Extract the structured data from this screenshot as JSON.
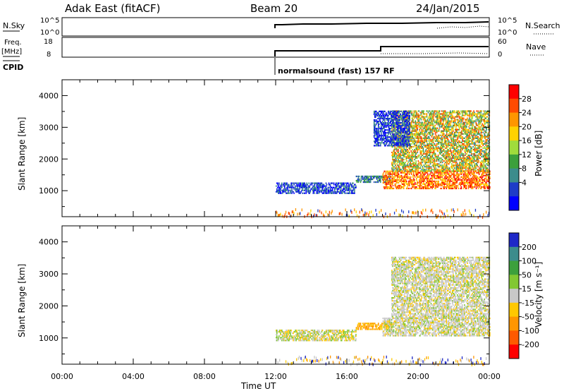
{
  "header": {
    "station": "Adak East (fitACF)",
    "beam": "Beam 20",
    "date": "24/Jan/2015"
  },
  "status_panels": {
    "nsky_label": "N.Sky",
    "nsearch_label": "N.Search",
    "freq_label_line1": "Freq.",
    "freq_label_line2": "[MHz]",
    "nave_label": "Nave",
    "cpid_label": "CPID",
    "cpid_text": "normalsound (fast) 157 RF",
    "nsky_ticks": [
      "10^5",
      "10^0"
    ],
    "nsearch_ticks": [
      "10^5",
      "10^0"
    ],
    "freq_ticks": [
      "18",
      "8"
    ],
    "nave_ticks": [
      "60",
      "0"
    ]
  },
  "colorbars": {
    "power": {
      "label": "Power [dB]",
      "ticks": [
        "28",
        "24",
        "20",
        "16",
        "12",
        "8",
        "4"
      ],
      "colors": [
        "#ff0000",
        "#ff4b00",
        "#ff9600",
        "#ffd200",
        "#a0dc3c",
        "#3ca03c",
        "#3c8c8c",
        "#1e3cc8",
        "#0000ff"
      ]
    },
    "velocity": {
      "label": "Velocity [m s⁻¹]",
      "ticks": [
        "200",
        "100",
        "50",
        "15",
        "-15",
        "-50",
        "-100",
        "-200"
      ],
      "colors": [
        "#1e28c8",
        "#3c8c8c",
        "#3ca03c",
        "#82c832",
        "#c8c8c8",
        "#ffc800",
        "#ff9600",
        "#ff5a00",
        "#ff0000"
      ]
    }
  },
  "chart_data": [
    {
      "type": "heatmap",
      "title": "Power",
      "ylabel": "Slant Range [km]",
      "xlabel": "Time UT",
      "xlim": [
        "00:00",
        "00:00"
      ],
      "ylim": [
        180,
        4500
      ],
      "x_ticks": [
        "00:00",
        "04:00",
        "08:00",
        "12:00",
        "16:00",
        "20:00",
        "00:00"
      ],
      "y_ticks": [
        1000,
        2000,
        3000,
        4000
      ],
      "regions": [
        {
          "t_start": 12.0,
          "t_end": 16.5,
          "r_min": 900,
          "r_max": 1250,
          "level": "blue"
        },
        {
          "t_start": 16.5,
          "t_end": 18.5,
          "r_min": 1250,
          "r_max": 1450,
          "level": "blue-teal"
        },
        {
          "t_start": 18.0,
          "t_end": 24.0,
          "r_min": 1050,
          "r_max": 1600,
          "level": "red-orange"
        },
        {
          "t_start": 18.5,
          "t_end": 24.0,
          "r_min": 1600,
          "r_max": 3500,
          "level": "green-orange"
        },
        {
          "t_start": 17.5,
          "t_end": 19.5,
          "r_min": 2400,
          "r_max": 3500,
          "level": "blue"
        }
      ]
    },
    {
      "type": "heatmap",
      "title": "Velocity",
      "ylabel": "Slant Range [km]",
      "xlabel": "Time UT",
      "xlim": [
        "00:00",
        "00:00"
      ],
      "ylim": [
        180,
        4500
      ],
      "x_ticks": [
        "00:00",
        "04:00",
        "08:00",
        "12:00",
        "16:00",
        "20:00",
        "00:00"
      ],
      "y_ticks": [
        1000,
        2000,
        3000,
        4000
      ],
      "regions": [
        {
          "t_start": 12.0,
          "t_end": 16.5,
          "r_min": 900,
          "r_max": 1250,
          "level": "gray-orange"
        },
        {
          "t_start": 16.5,
          "t_end": 18.5,
          "r_min": 1250,
          "r_max": 1450,
          "level": "orange"
        },
        {
          "t_start": 18.0,
          "t_end": 24.0,
          "r_min": 1050,
          "r_max": 1600,
          "level": "gray"
        },
        {
          "t_start": 18.5,
          "t_end": 24.0,
          "r_min": 1600,
          "r_max": 3500,
          "level": "gray"
        }
      ]
    }
  ]
}
